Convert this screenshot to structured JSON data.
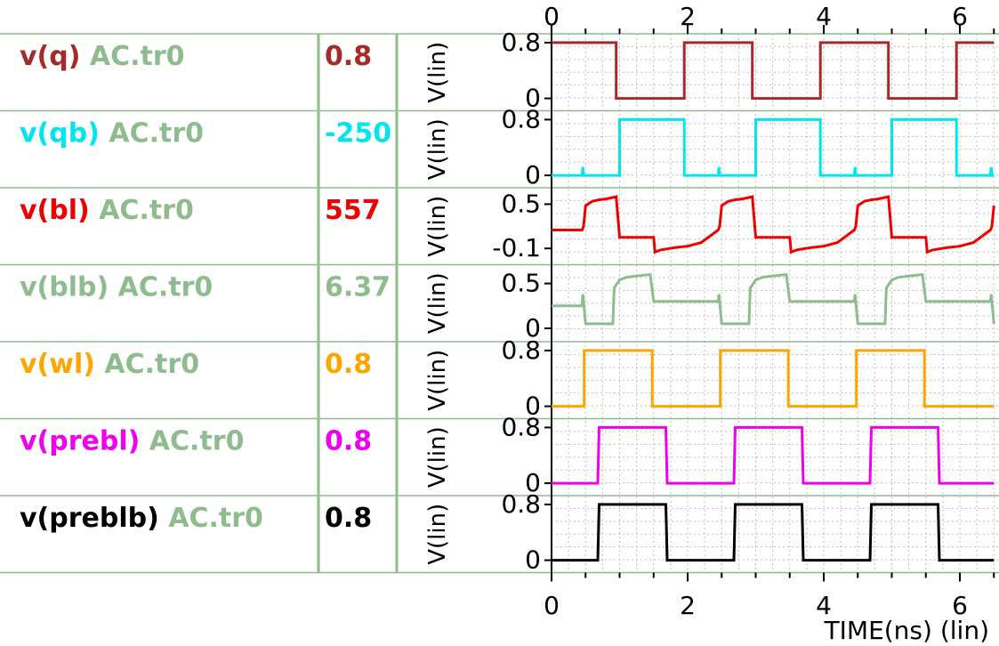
{
  "file_label": "AC.tr0",
  "x_axis": {
    "label": "TIME(ns) (lin)",
    "tick_labels": [
      "0",
      "2",
      "4",
      "6"
    ]
  },
  "y_unit_label": "V(lin)",
  "signals": [
    {
      "name": "v(q)",
      "color": "#a52a2a",
      "value": "0.8",
      "y_ticks": [
        "0.8",
        "0"
      ]
    },
    {
      "name": "v(qb)",
      "color": "#00e5ee",
      "value": "-250",
      "y_ticks": [
        "0.8",
        "0"
      ]
    },
    {
      "name": "v(bl)",
      "color": "#ee0000",
      "value": "557",
      "y_ticks": [
        "0.5",
        "-0.1"
      ]
    },
    {
      "name": "v(blb)",
      "color": "#8fbc8f",
      "value": "6.37",
      "y_ticks": [
        "0.5",
        "0"
      ]
    },
    {
      "name": "v(wl)",
      "color": "#ffa500",
      "value": "0.8",
      "y_ticks": [
        "0.8",
        "0"
      ]
    },
    {
      "name": "v(prebl)",
      "color": "#ee00ee",
      "value": "0.8",
      "y_ticks": [
        "0.8",
        "0"
      ]
    },
    {
      "name": "v(preblb)",
      "color": "#000000",
      "value": "0.8",
      "y_ticks": [
        "0.8",
        "0"
      ]
    }
  ],
  "colors": {
    "separator": "#8fbc8f",
    "grid": "#bfbfbf",
    "file_label": "#8fbc8f"
  },
  "chart_data": {
    "type": "line",
    "xlabel": "TIME(ns) (lin)",
    "xlim": [
      0,
      6.5
    ],
    "x_ticks": [
      0,
      2,
      4,
      6
    ],
    "series": [
      {
        "name": "v(q) AC.tr0",
        "ylim": [
          -0.05,
          0.85
        ],
        "x": [
          0,
          0.95,
          0.95,
          1.95,
          1.95,
          2.95,
          2.95,
          3.95,
          3.95,
          4.95,
          4.95,
          5.95,
          5.95,
          6.5
        ],
        "y": [
          0.8,
          0.8,
          0,
          0,
          0.8,
          0.8,
          0,
          0,
          0.8,
          0.8,
          0,
          0,
          0.8,
          0.8
        ]
      },
      {
        "name": "v(qb) AC.tr0",
        "ylim": [
          -0.05,
          0.85
        ],
        "x": [
          0,
          0.45,
          0.46,
          0.47,
          1.0,
          1.0,
          1.95,
          1.95,
          2.45,
          2.46,
          2.47,
          3.0,
          3.0,
          3.95,
          3.95,
          4.45,
          4.46,
          4.47,
          5.0,
          5.0,
          5.95,
          5.95,
          6.45,
          6.46,
          6.47,
          6.5
        ],
        "y": [
          0,
          0,
          0.12,
          0,
          0,
          0.8,
          0.8,
          0,
          0,
          0.12,
          0,
          0,
          0.8,
          0.8,
          0,
          0,
          0.12,
          0,
          0,
          0.8,
          0.8,
          0,
          0,
          0.12,
          0,
          0
        ]
      },
      {
        "name": "v(bl) AC.tr0",
        "ylim": [
          -0.2,
          0.65
        ],
        "x": [
          0,
          0.45,
          0.47,
          0.5,
          0.6,
          0.7,
          0.8,
          0.95,
          1.0,
          1.5,
          1.52,
          1.6,
          1.8,
          2.0,
          2.2,
          2.45,
          2.47,
          2.5,
          2.6,
          2.7,
          2.8,
          2.95,
          3.0,
          3.5,
          3.52,
          3.6,
          3.8,
          4.0,
          4.2,
          4.45,
          4.47,
          4.5,
          4.6,
          4.7,
          4.8,
          4.95,
          5.0,
          5.5,
          5.52,
          5.6,
          5.8,
          6.0,
          6.2,
          6.45,
          6.47,
          6.5
        ],
        "y": [
          0.15,
          0.15,
          0.2,
          0.48,
          0.54,
          0.56,
          0.57,
          0.6,
          0.05,
          0.05,
          -0.15,
          -0.12,
          -0.09,
          -0.07,
          -0.02,
          0.15,
          0.2,
          0.48,
          0.54,
          0.56,
          0.57,
          0.6,
          0.05,
          0.05,
          -0.15,
          -0.12,
          -0.09,
          -0.07,
          -0.02,
          0.15,
          0.2,
          0.48,
          0.54,
          0.56,
          0.57,
          0.6,
          0.05,
          0.05,
          -0.15,
          -0.12,
          -0.09,
          -0.07,
          -0.02,
          0.15,
          0.2,
          0.48
        ]
      },
      {
        "name": "v(blb) AC.tr0",
        "ylim": [
          -0.05,
          0.65
        ],
        "x": [
          0,
          0.45,
          0.46,
          0.5,
          0.9,
          0.92,
          1.0,
          1.1,
          1.2,
          1.45,
          1.5,
          2.45,
          2.46,
          2.5,
          2.9,
          2.92,
          3.0,
          3.1,
          3.2,
          3.45,
          3.5,
          4.45,
          4.46,
          4.5,
          4.9,
          4.92,
          5.0,
          5.1,
          5.2,
          5.45,
          5.5,
          6.45,
          6.46,
          6.5
        ],
        "y": [
          0.25,
          0.25,
          0.38,
          0.05,
          0.05,
          0.45,
          0.54,
          0.57,
          0.58,
          0.6,
          0.3,
          0.3,
          0.38,
          0.05,
          0.05,
          0.45,
          0.54,
          0.57,
          0.58,
          0.6,
          0.3,
          0.3,
          0.38,
          0.05,
          0.05,
          0.45,
          0.54,
          0.57,
          0.58,
          0.6,
          0.3,
          0.3,
          0.38,
          0.05
        ]
      },
      {
        "name": "v(wl) AC.tr0",
        "ylim": [
          -0.05,
          0.85
        ],
        "x": [
          0,
          0.48,
          0.48,
          1.48,
          1.48,
          2.48,
          2.48,
          3.48,
          3.48,
          4.48,
          4.48,
          5.48,
          5.48,
          6.5
        ],
        "y": [
          0,
          0,
          0.8,
          0.8,
          0,
          0,
          0.8,
          0.8,
          0,
          0,
          0.8,
          0.8,
          0,
          0
        ]
      },
      {
        "name": "v(prebl) AC.tr0",
        "ylim": [
          -0.05,
          0.85
        ],
        "x": [
          0,
          0.68,
          0.7,
          1.68,
          1.7,
          2.68,
          2.7,
          3.68,
          3.7,
          4.68,
          4.7,
          5.68,
          5.7,
          6.5
        ],
        "y": [
          0,
          0,
          0.8,
          0.8,
          0,
          0,
          0.8,
          0.8,
          0,
          0,
          0.8,
          0.8,
          0,
          0
        ]
      },
      {
        "name": "v(preblb) AC.tr0",
        "ylim": [
          -0.05,
          0.85
        ],
        "x": [
          0,
          0.68,
          0.7,
          1.68,
          1.7,
          2.68,
          2.7,
          3.68,
          3.7,
          4.68,
          4.7,
          5.68,
          5.7,
          6.5
        ],
        "y": [
          0,
          0,
          0.8,
          0.8,
          0,
          0,
          0.8,
          0.8,
          0,
          0,
          0.8,
          0.8,
          0,
          0
        ]
      }
    ],
    "grid": true,
    "legend": "left"
  }
}
